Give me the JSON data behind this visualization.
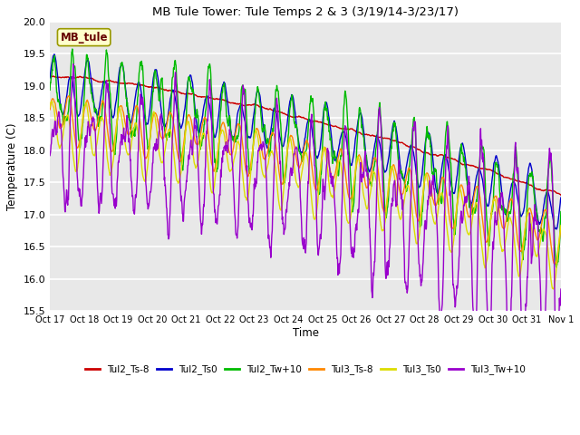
{
  "title": "MB Tule Tower: Tule Temps 2 & 3 (3/19/14-3/23/17)",
  "xlabel": "Time",
  "ylabel": "Temperature (C)",
  "ylim": [
    15.5,
    20.0
  ],
  "xlim": [
    0,
    15
  ],
  "background_color": "#ffffff",
  "plot_bg_color": "#e8e8e8",
  "grid_color": "#ffffff",
  "annotation_text": "MB_tule",
  "annotation_box_color": "#ffffcc",
  "annotation_box_edge": "#999900",
  "xtick_labels": [
    "Oct 17",
    "Oct 18",
    "Oct 19",
    "Oct 20",
    "Oct 21",
    "Oct 22",
    "Oct 23",
    "Oct 24",
    "Oct 25",
    "Oct 26",
    "Oct 27",
    "Oct 28",
    "Oct 29",
    "Oct 30",
    "Oct 31",
    "Nov 1"
  ],
  "series": {
    "Tul2_Ts-8": {
      "color": "#cc0000",
      "lw": 1.0
    },
    "Tul2_Ts0": {
      "color": "#0000cc",
      "lw": 1.0
    },
    "Tul2_Tw+10": {
      "color": "#00bb00",
      "lw": 1.0
    },
    "Tul3_Ts-8": {
      "color": "#ff8800",
      "lw": 1.0
    },
    "Tul3_Ts0": {
      "color": "#dddd00",
      "lw": 1.0
    },
    "Tul3_Tw+10": {
      "color": "#9900cc",
      "lw": 1.0
    }
  }
}
